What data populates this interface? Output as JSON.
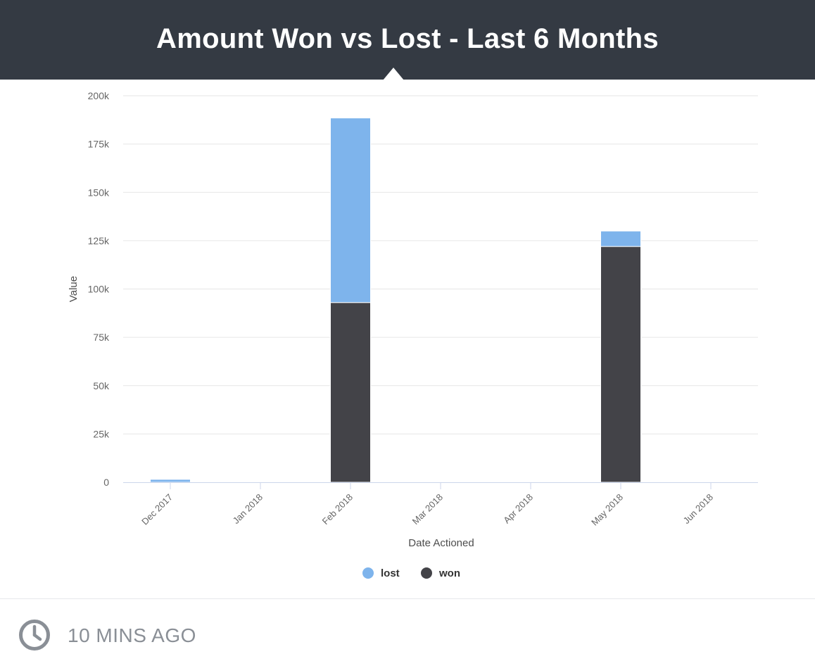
{
  "header": {
    "title": "Amount Won vs Lost - Last 6 Months"
  },
  "footer": {
    "time_label": "10 MINS AGO",
    "icon": "clock-icon"
  },
  "colors": {
    "header_bg": "#343a43",
    "lost": "#7eb4ec",
    "won": "#434348",
    "grid": "#e6e6e6",
    "axis_text": "#666666"
  },
  "chart_data": {
    "type": "bar",
    "stacked": true,
    "title": "",
    "xlabel": "Date Actioned",
    "ylabel": "Value",
    "ylim": [
      0,
      200000
    ],
    "y_ticks": [
      0,
      25000,
      50000,
      75000,
      100000,
      125000,
      150000,
      175000,
      200000
    ],
    "y_tick_labels": [
      "0",
      "25k",
      "50k",
      "75k",
      "100k",
      "125k",
      "150k",
      "175k",
      "200k"
    ],
    "x_tick_labels": [
      "Dec 2017",
      "Jan 2018",
      "Feb 2018",
      "Mar 2018",
      "Apr 2018",
      "May 2018",
      "Jun 2018"
    ],
    "categories": [
      "Dec 2017",
      "Feb 2018",
      "May 2018"
    ],
    "series": [
      {
        "name": "won",
        "color": "#434348",
        "values": [
          0,
          93000,
          122000
        ]
      },
      {
        "name": "lost",
        "color": "#7eb4ec",
        "values": [
          1500,
          95500,
          8000
        ]
      }
    ],
    "legend": {
      "position": "bottom-center",
      "items": [
        {
          "name": "lost",
          "color": "#7eb4ec"
        },
        {
          "name": "won",
          "color": "#434348"
        }
      ]
    },
    "grid": true
  }
}
